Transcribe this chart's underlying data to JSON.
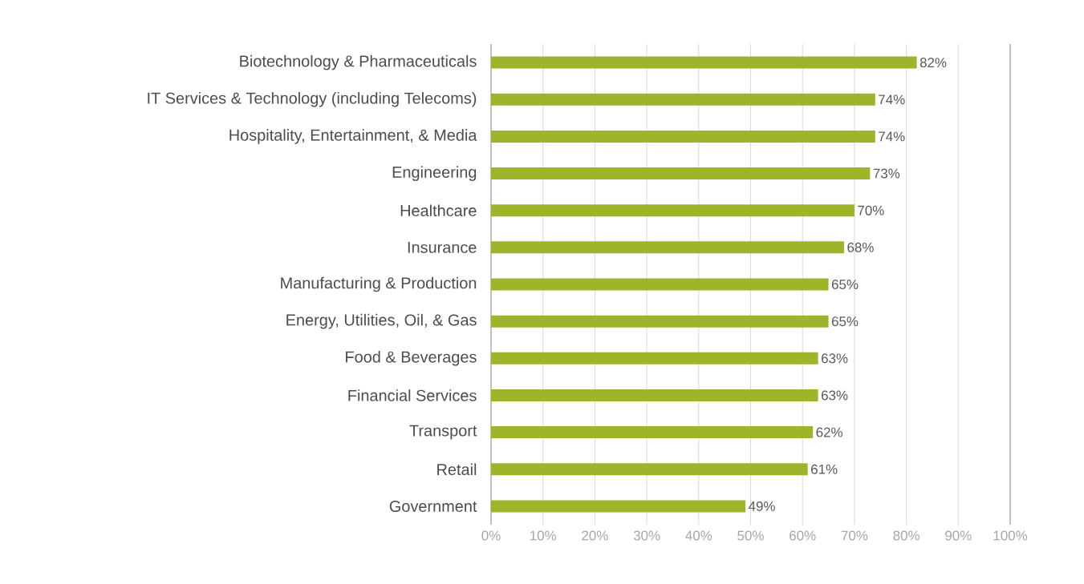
{
  "chart_data": {
    "type": "bar",
    "orientation": "horizontal",
    "categories": [
      "Biotechnology & Pharmaceuticals",
      "IT Services & Technology (including Telecoms)",
      "Hospitality, Entertainment, & Media",
      "Engineering",
      "Healthcare",
      "Insurance",
      "Manufacturing & Production",
      "Energy, Utilities, Oil, & Gas",
      "Food & Beverages",
      "Financial Services",
      "Transport",
      "Retail",
      "Government"
    ],
    "values": [
      82,
      74,
      74,
      73,
      70,
      68,
      65,
      65,
      63,
      63,
      62,
      61,
      49
    ],
    "value_labels": [
      "82%",
      "74%",
      "74%",
      "73%",
      "70%",
      "68%",
      "65%",
      "65%",
      "63%",
      "63%",
      "62%",
      "61%",
      "49%"
    ],
    "color": "#9cb52a",
    "xlim": [
      0,
      100
    ],
    "xticks": [
      {
        "value": 0,
        "label": "0%"
      },
      {
        "value": 10,
        "label": "10%"
      },
      {
        "value": 20,
        "label": "20%"
      },
      {
        "value": 30,
        "label": "30%"
      },
      {
        "value": 40,
        "label": "40%"
      },
      {
        "value": 50,
        "label": "50%"
      },
      {
        "value": 60,
        "label": "60%"
      },
      {
        "value": 70,
        "label": "70%"
      },
      {
        "value": 80,
        "label": "80%"
      },
      {
        "value": 90,
        "label": "90%"
      },
      {
        "value": 100,
        "label": "100%"
      }
    ],
    "grid": "x"
  }
}
